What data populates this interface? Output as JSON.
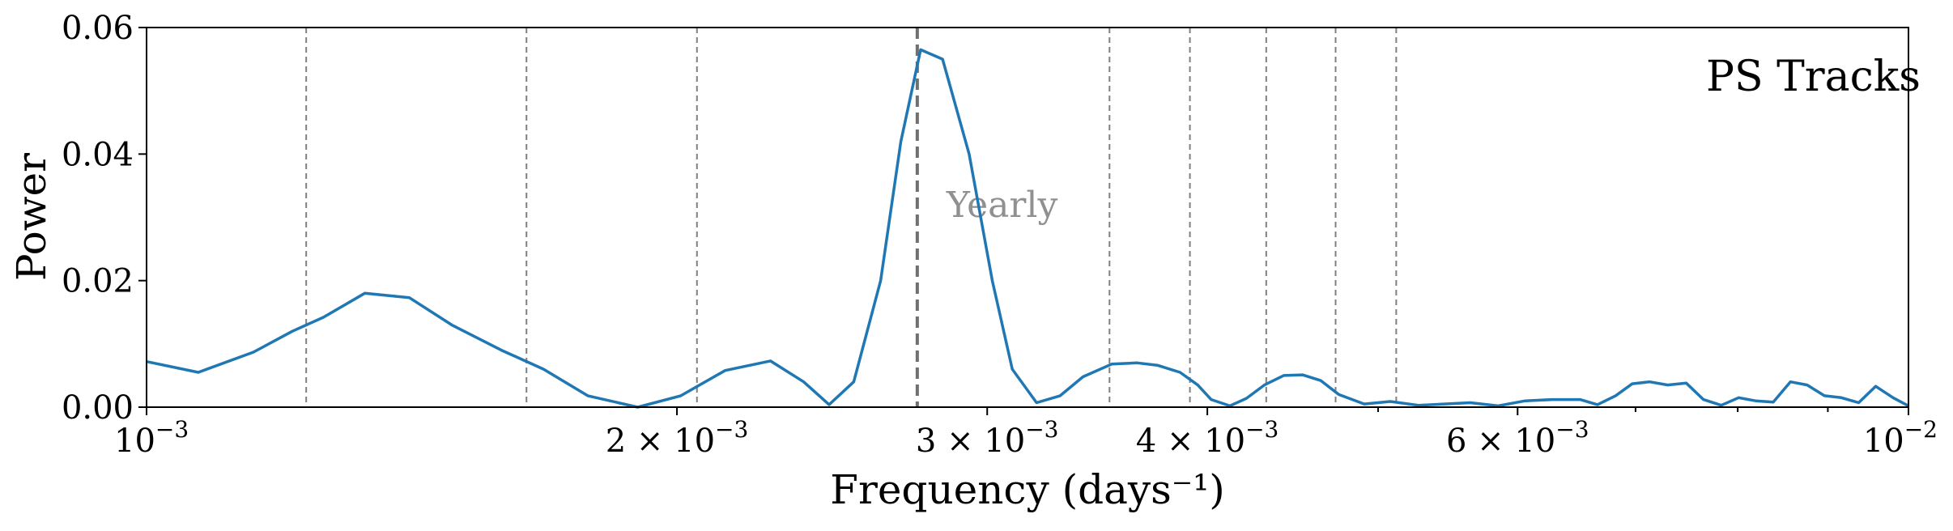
{
  "chart_data": {
    "type": "line",
    "x_scale": "log",
    "xlim": [
      0.001,
      0.01
    ],
    "ylim": [
      0,
      0.06
    ],
    "xlabel": "Frequency (days⁻¹)",
    "ylabel": "Power",
    "panel_label": "PS Tracks",
    "grid": false,
    "x_ticks": [
      {
        "value": 0.001,
        "mantissa": "10",
        "exp": "−3",
        "kind": "power"
      },
      {
        "value": 0.002,
        "mantissa": "2",
        "exp": "−3",
        "kind": "sci"
      },
      {
        "value": 0.003,
        "mantissa": "3",
        "exp": "−3",
        "kind": "sci"
      },
      {
        "value": 0.004,
        "mantissa": "4",
        "exp": "−3",
        "kind": "sci"
      },
      {
        "value": 0.006,
        "mantissa": "6",
        "exp": "−3",
        "kind": "sci"
      },
      {
        "value": 0.01,
        "mantissa": "10",
        "exp": "−2",
        "kind": "power"
      }
    ],
    "x_minor_ticks": [
      0.005,
      0.007,
      0.008,
      0.009
    ],
    "y_ticks": [
      {
        "value": 0.0,
        "label": "0.00"
      },
      {
        "value": 0.02,
        "label": "0.02"
      },
      {
        "value": 0.04,
        "label": "0.04"
      },
      {
        "value": 0.06,
        "label": "0.06"
      }
    ],
    "reference_lines": [
      {
        "x": 0.001232,
        "style": "thin"
      },
      {
        "x": 0.001643,
        "style": "thin"
      },
      {
        "x": 0.002053,
        "style": "thin"
      },
      {
        "x": 0.002738,
        "style": "main",
        "label": "Yearly"
      },
      {
        "x": 0.00352,
        "style": "thin"
      },
      {
        "x": 0.00391,
        "style": "thin"
      },
      {
        "x": 0.00432,
        "style": "thin"
      },
      {
        "x": 0.00473,
        "style": "thin"
      },
      {
        "x": 0.00512,
        "style": "thin"
      }
    ],
    "series": [
      {
        "color": "#1f77b4",
        "x": [
          0.001,
          0.00107,
          0.00115,
          0.00121,
          0.00126,
          0.00133,
          0.00141,
          0.00149,
          0.00159,
          0.00168,
          0.00178,
          0.0019,
          0.00201,
          0.00213,
          0.00226,
          0.00236,
          0.00244,
          0.00252,
          0.00261,
          0.00268,
          0.00275,
          0.00283,
          0.00293,
          0.00302,
          0.0031,
          0.0032,
          0.0033,
          0.0034,
          0.00353,
          0.00365,
          0.00375,
          0.00386,
          0.00395,
          0.00402,
          0.00412,
          0.00421,
          0.00431,
          0.00442,
          0.00453,
          0.00464,
          0.00475,
          0.00491,
          0.00508,
          0.00527,
          0.00545,
          0.00564,
          0.00585,
          0.00606,
          0.00628,
          0.00651,
          0.00666,
          0.00682,
          0.00697,
          0.00713,
          0.0073,
          0.00748,
          0.00765,
          0.00783,
          0.00801,
          0.00819,
          0.00838,
          0.00857,
          0.00876,
          0.00896,
          0.00916,
          0.00937,
          0.00958,
          0.0098,
          0.01
        ],
        "y": [
          0.0072,
          0.0055,
          0.0087,
          0.012,
          0.0142,
          0.018,
          0.0173,
          0.013,
          0.009,
          0.006,
          0.0018,
          0.0,
          0.0018,
          0.0058,
          0.0073,
          0.004,
          0.0004,
          0.004,
          0.02,
          0.042,
          0.0565,
          0.055,
          0.04,
          0.02,
          0.006,
          0.0007,
          0.0018,
          0.0048,
          0.0068,
          0.007,
          0.0066,
          0.0055,
          0.0035,
          0.0012,
          0.0002,
          0.0014,
          0.0035,
          0.005,
          0.0051,
          0.0042,
          0.002,
          0.0005,
          0.0009,
          0.0003,
          0.0005,
          0.0007,
          0.0002,
          0.001,
          0.0012,
          0.0012,
          0.0004,
          0.0018,
          0.0037,
          0.004,
          0.0035,
          0.0038,
          0.0012,
          0.0003,
          0.0015,
          0.001,
          0.0008,
          0.004,
          0.0035,
          0.0018,
          0.0015,
          0.0007,
          0.0033,
          0.0015,
          0.0002
        ]
      }
    ]
  }
}
